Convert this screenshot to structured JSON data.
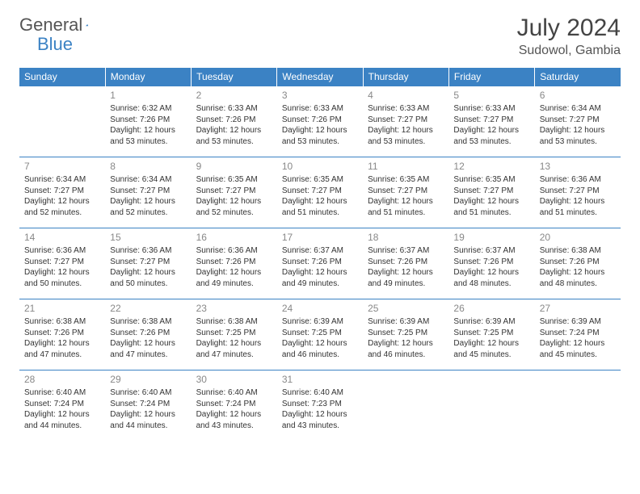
{
  "logo": {
    "text1": "General",
    "text2": "Blue"
  },
  "title": "July 2024",
  "location": "Sudowol, Gambia",
  "colors": {
    "header_bg": "#3b82c4",
    "header_text": "#ffffff",
    "rule": "#3b82c4",
    "daynum": "#888888",
    "body_text": "#333333",
    "logo_gray": "#555555",
    "logo_blue": "#3b82c4"
  },
  "day_headers": [
    "Sunday",
    "Monday",
    "Tuesday",
    "Wednesday",
    "Thursday",
    "Friday",
    "Saturday"
  ],
  "weeks": [
    [
      null,
      {
        "n": "1",
        "sr": "Sunrise: 6:32 AM",
        "ss": "Sunset: 7:26 PM",
        "dl": "Daylight: 12 hours and 53 minutes."
      },
      {
        "n": "2",
        "sr": "Sunrise: 6:33 AM",
        "ss": "Sunset: 7:26 PM",
        "dl": "Daylight: 12 hours and 53 minutes."
      },
      {
        "n": "3",
        "sr": "Sunrise: 6:33 AM",
        "ss": "Sunset: 7:26 PM",
        "dl": "Daylight: 12 hours and 53 minutes."
      },
      {
        "n": "4",
        "sr": "Sunrise: 6:33 AM",
        "ss": "Sunset: 7:27 PM",
        "dl": "Daylight: 12 hours and 53 minutes."
      },
      {
        "n": "5",
        "sr": "Sunrise: 6:33 AM",
        "ss": "Sunset: 7:27 PM",
        "dl": "Daylight: 12 hours and 53 minutes."
      },
      {
        "n": "6",
        "sr": "Sunrise: 6:34 AM",
        "ss": "Sunset: 7:27 PM",
        "dl": "Daylight: 12 hours and 53 minutes."
      }
    ],
    [
      {
        "n": "7",
        "sr": "Sunrise: 6:34 AM",
        "ss": "Sunset: 7:27 PM",
        "dl": "Daylight: 12 hours and 52 minutes."
      },
      {
        "n": "8",
        "sr": "Sunrise: 6:34 AM",
        "ss": "Sunset: 7:27 PM",
        "dl": "Daylight: 12 hours and 52 minutes."
      },
      {
        "n": "9",
        "sr": "Sunrise: 6:35 AM",
        "ss": "Sunset: 7:27 PM",
        "dl": "Daylight: 12 hours and 52 minutes."
      },
      {
        "n": "10",
        "sr": "Sunrise: 6:35 AM",
        "ss": "Sunset: 7:27 PM",
        "dl": "Daylight: 12 hours and 51 minutes."
      },
      {
        "n": "11",
        "sr": "Sunrise: 6:35 AM",
        "ss": "Sunset: 7:27 PM",
        "dl": "Daylight: 12 hours and 51 minutes."
      },
      {
        "n": "12",
        "sr": "Sunrise: 6:35 AM",
        "ss": "Sunset: 7:27 PM",
        "dl": "Daylight: 12 hours and 51 minutes."
      },
      {
        "n": "13",
        "sr": "Sunrise: 6:36 AM",
        "ss": "Sunset: 7:27 PM",
        "dl": "Daylight: 12 hours and 51 minutes."
      }
    ],
    [
      {
        "n": "14",
        "sr": "Sunrise: 6:36 AM",
        "ss": "Sunset: 7:27 PM",
        "dl": "Daylight: 12 hours and 50 minutes."
      },
      {
        "n": "15",
        "sr": "Sunrise: 6:36 AM",
        "ss": "Sunset: 7:27 PM",
        "dl": "Daylight: 12 hours and 50 minutes."
      },
      {
        "n": "16",
        "sr": "Sunrise: 6:36 AM",
        "ss": "Sunset: 7:26 PM",
        "dl": "Daylight: 12 hours and 49 minutes."
      },
      {
        "n": "17",
        "sr": "Sunrise: 6:37 AM",
        "ss": "Sunset: 7:26 PM",
        "dl": "Daylight: 12 hours and 49 minutes."
      },
      {
        "n": "18",
        "sr": "Sunrise: 6:37 AM",
        "ss": "Sunset: 7:26 PM",
        "dl": "Daylight: 12 hours and 49 minutes."
      },
      {
        "n": "19",
        "sr": "Sunrise: 6:37 AM",
        "ss": "Sunset: 7:26 PM",
        "dl": "Daylight: 12 hours and 48 minutes."
      },
      {
        "n": "20",
        "sr": "Sunrise: 6:38 AM",
        "ss": "Sunset: 7:26 PM",
        "dl": "Daylight: 12 hours and 48 minutes."
      }
    ],
    [
      {
        "n": "21",
        "sr": "Sunrise: 6:38 AM",
        "ss": "Sunset: 7:26 PM",
        "dl": "Daylight: 12 hours and 47 minutes."
      },
      {
        "n": "22",
        "sr": "Sunrise: 6:38 AM",
        "ss": "Sunset: 7:26 PM",
        "dl": "Daylight: 12 hours and 47 minutes."
      },
      {
        "n": "23",
        "sr": "Sunrise: 6:38 AM",
        "ss": "Sunset: 7:25 PM",
        "dl": "Daylight: 12 hours and 47 minutes."
      },
      {
        "n": "24",
        "sr": "Sunrise: 6:39 AM",
        "ss": "Sunset: 7:25 PM",
        "dl": "Daylight: 12 hours and 46 minutes."
      },
      {
        "n": "25",
        "sr": "Sunrise: 6:39 AM",
        "ss": "Sunset: 7:25 PM",
        "dl": "Daylight: 12 hours and 46 minutes."
      },
      {
        "n": "26",
        "sr": "Sunrise: 6:39 AM",
        "ss": "Sunset: 7:25 PM",
        "dl": "Daylight: 12 hours and 45 minutes."
      },
      {
        "n": "27",
        "sr": "Sunrise: 6:39 AM",
        "ss": "Sunset: 7:24 PM",
        "dl": "Daylight: 12 hours and 45 minutes."
      }
    ],
    [
      {
        "n": "28",
        "sr": "Sunrise: 6:40 AM",
        "ss": "Sunset: 7:24 PM",
        "dl": "Daylight: 12 hours and 44 minutes."
      },
      {
        "n": "29",
        "sr": "Sunrise: 6:40 AM",
        "ss": "Sunset: 7:24 PM",
        "dl": "Daylight: 12 hours and 44 minutes."
      },
      {
        "n": "30",
        "sr": "Sunrise: 6:40 AM",
        "ss": "Sunset: 7:24 PM",
        "dl": "Daylight: 12 hours and 43 minutes."
      },
      {
        "n": "31",
        "sr": "Sunrise: 6:40 AM",
        "ss": "Sunset: 7:23 PM",
        "dl": "Daylight: 12 hours and 43 minutes."
      },
      null,
      null,
      null
    ]
  ]
}
